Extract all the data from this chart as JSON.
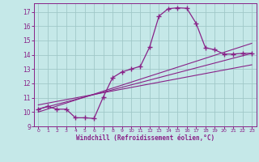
{
  "background_color": "#c5e8e8",
  "grid_color": "#a0c8c8",
  "line_color": "#882288",
  "marker_color": "#882288",
  "xlabel": "Windchill (Refroidissement éolien,°C)",
  "xlim": [
    -0.5,
    23.5
  ],
  "ylim": [
    9.0,
    17.6
  ],
  "yticks": [
    9,
    10,
    11,
    12,
    13,
    14,
    15,
    16,
    17
  ],
  "xticks": [
    0,
    1,
    2,
    3,
    4,
    5,
    6,
    7,
    8,
    9,
    10,
    11,
    12,
    13,
    14,
    15,
    16,
    17,
    18,
    19,
    20,
    21,
    22,
    23
  ],
  "curve_x": [
    0,
    1,
    2,
    3,
    4,
    5,
    6,
    7,
    8,
    9,
    10,
    11,
    12,
    13,
    14,
    15,
    16,
    17,
    18,
    19,
    20,
    21,
    22,
    23
  ],
  "curve_y": [
    10.2,
    10.4,
    10.2,
    10.2,
    9.6,
    9.6,
    9.55,
    11.05,
    12.4,
    12.8,
    13.0,
    13.2,
    14.55,
    16.7,
    17.22,
    17.28,
    17.25,
    16.2,
    14.5,
    14.35,
    14.05,
    14.05,
    14.1,
    14.1
  ],
  "line1_x": [
    0,
    23
  ],
  "line1_y": [
    10.2,
    14.1
  ],
  "line2_x": [
    0,
    23
  ],
  "line2_y": [
    10.5,
    13.3
  ],
  "line3_x": [
    0,
    23
  ],
  "line3_y": [
    10.0,
    14.8
  ]
}
